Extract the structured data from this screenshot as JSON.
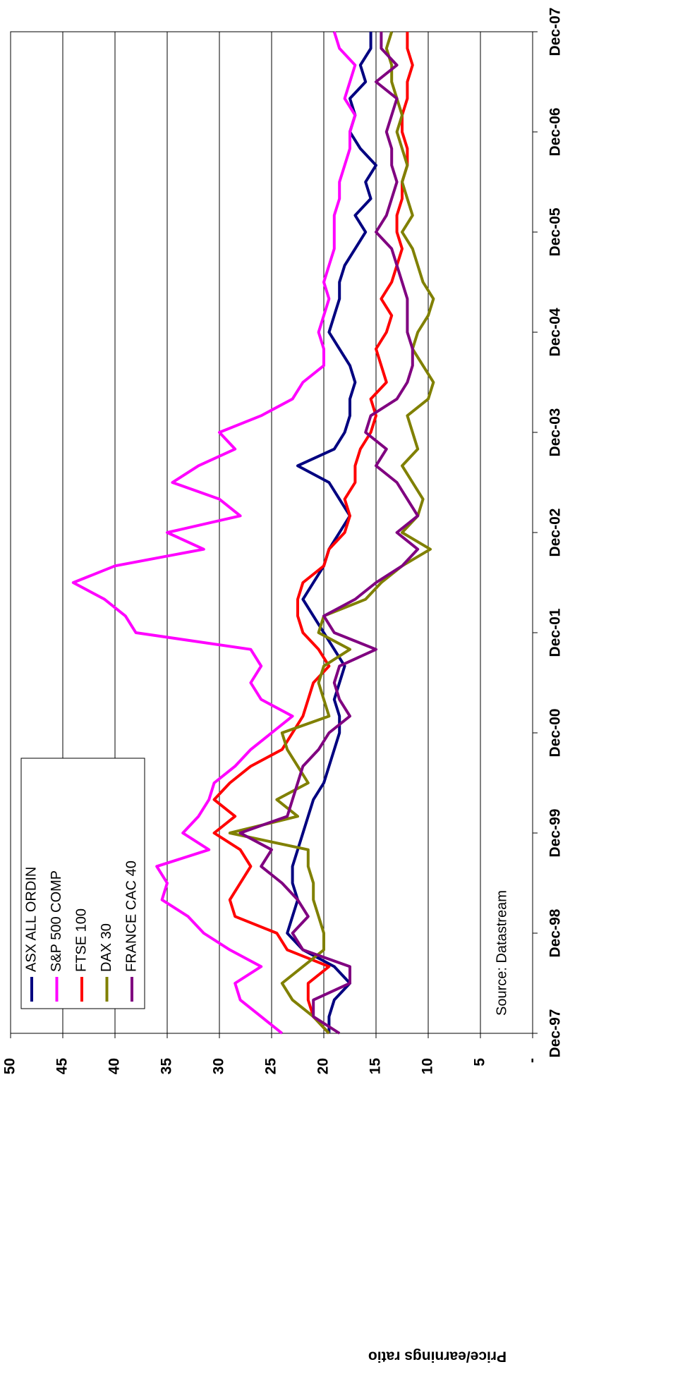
{
  "chart_data": {
    "type": "line",
    "y_label": "Price/earnings ratio",
    "annotation": "Source: Datastream",
    "categories": [
      "Dec-97",
      null,
      null,
      null,
      null,
      null,
      "Dec-98",
      null,
      null,
      null,
      null,
      null,
      "Dec-99",
      null,
      null,
      null,
      null,
      null,
      "Dec-00",
      null,
      null,
      null,
      null,
      null,
      "Dec-01",
      null,
      null,
      null,
      null,
      null,
      "Dec-02",
      null,
      null,
      null,
      null,
      null,
      "Dec-03",
      null,
      null,
      null,
      null,
      null,
      "Dec-04",
      null,
      null,
      null,
      null,
      null,
      "Dec-05",
      null,
      null,
      null,
      null,
      null,
      "Dec-06",
      null,
      null,
      null,
      null,
      null,
      "Dec-07"
    ],
    "ylim": [
      0,
      50
    ],
    "yticks": [
      {
        "value": 0,
        "label": "-"
      },
      5,
      10,
      15,
      20,
      25,
      30,
      35,
      40,
      45,
      50
    ],
    "grid": true,
    "legend": "upper left",
    "series": [
      {
        "name": "ASX ALL ORDIN",
        "color": "#000080",
        "values": [
          19.5,
          19.5,
          19,
          17.5,
          19,
          22,
          23.5,
          23,
          22.5,
          23,
          23,
          22.5,
          22,
          21.5,
          21,
          20,
          19.5,
          19,
          18.5,
          18.5,
          19,
          18.5,
          18,
          19,
          20,
          21,
          22,
          21,
          20,
          19.5,
          18.5,
          17.5,
          18.5,
          19.5,
          22.5,
          19,
          18,
          17.5,
          17.5,
          17,
          17.5,
          18.5,
          19.5,
          19,
          18.5,
          18.5,
          18,
          17,
          16,
          17,
          15.5,
          16,
          15,
          16.5,
          17.5,
          17,
          17.5,
          16,
          16.5,
          15.5,
          15.5
        ]
      },
      {
        "name": "S&P 500 COMP",
        "color": "#ff00ff",
        "values": [
          24,
          26,
          28,
          28.5,
          26,
          29,
          31.5,
          33,
          35.5,
          35,
          36,
          31,
          33.5,
          32,
          31,
          30.5,
          28.5,
          27,
          25,
          23,
          26,
          27,
          26,
          27,
          38,
          39,
          41,
          44,
          40,
          31.5,
          35,
          28,
          30,
          34.5,
          32,
          28.5,
          30,
          26,
          23,
          22,
          20,
          20,
          20.5,
          20,
          19.5,
          20,
          19.5,
          19,
          19,
          19,
          18.5,
          18.5,
          18,
          17.5,
          17.5,
          17,
          18,
          17.5,
          17,
          18.5,
          19
        ]
      },
      {
        "name": "FTSE 100",
        "color": "#ff0000",
        "values": [
          19.5,
          21,
          21.5,
          21.5,
          19.5,
          23.5,
          24.5,
          28.5,
          29,
          28,
          27,
          28,
          30.5,
          28.5,
          30.5,
          29,
          27,
          24,
          23,
          22,
          21.5,
          21,
          19.5,
          20.5,
          22,
          22.5,
          22.5,
          22,
          20,
          19.5,
          18,
          17.5,
          18,
          17,
          17,
          16.5,
          15.5,
          15,
          15.5,
          14,
          14.5,
          15,
          14,
          13.5,
          14.5,
          13.5,
          13,
          12.5,
          13,
          13,
          12.5,
          12.5,
          12,
          12,
          12.5,
          12.5,
          12,
          12,
          11.5,
          12,
          12
        ]
      },
      {
        "name": "DAX 30",
        "color": "#808000",
        "values": [
          19.5,
          21,
          23,
          24,
          22,
          20,
          20,
          20.5,
          21,
          21,
          21.5,
          21.5,
          29,
          22.5,
          24.5,
          21.5,
          22.5,
          23.5,
          24,
          19.5,
          20,
          20.5,
          20,
          17.5,
          20.5,
          20,
          16,
          14.5,
          12.5,
          9.8,
          12.5,
          11,
          10.5,
          11.5,
          12.5,
          11,
          11.5,
          12,
          10,
          9.5,
          10.5,
          11.5,
          11,
          10,
          9.5,
          10.5,
          11,
          11.5,
          12.5,
          11.5,
          12,
          12.5,
          12,
          12.5,
          13,
          12.5,
          13,
          13.5,
          13.5,
          14,
          13.5
        ]
      },
      {
        "name": "FRANCE CAC 40",
        "color": "#800080",
        "values": [
          18.5,
          21,
          21,
          17.5,
          17.5,
          22,
          23,
          21.5,
          22.5,
          24,
          26,
          25,
          28,
          23.5,
          23,
          22.5,
          22,
          20.5,
          19.5,
          17.5,
          18.5,
          19,
          18.5,
          15,
          19,
          20,
          17,
          15,
          12.5,
          11,
          13,
          11,
          12,
          13,
          15,
          14,
          16,
          15.5,
          13,
          12,
          11.5,
          11.5,
          12,
          12,
          12,
          12.5,
          13,
          13.5,
          15,
          14,
          13.5,
          13,
          13.5,
          13.5,
          14,
          13.5,
          13,
          15,
          13,
          14.5,
          14.5
        ]
      }
    ]
  }
}
